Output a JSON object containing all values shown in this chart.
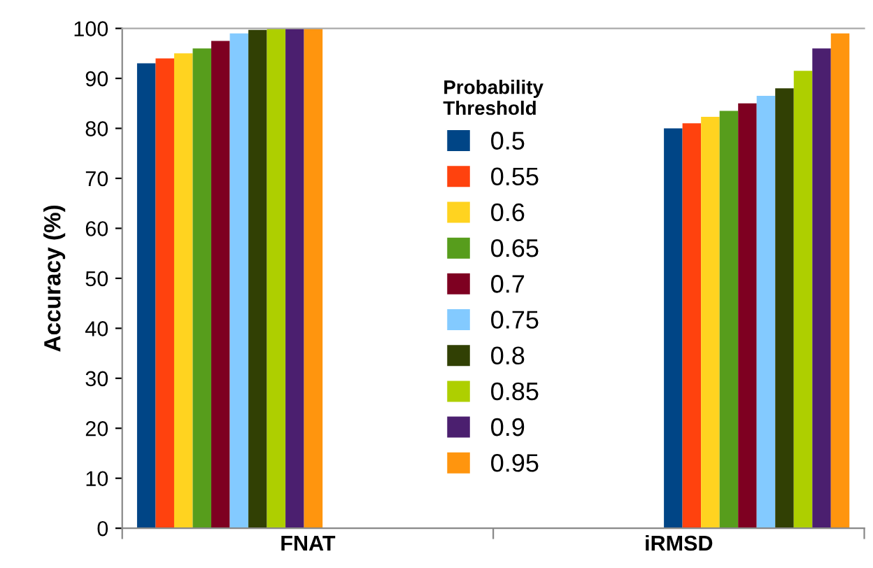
{
  "chart_data": {
    "type": "bar",
    "ylabel": "Accuracy (%)",
    "categories": [
      "FNAT",
      "iRMSD"
    ],
    "legend_title": "Probability\nThreshold",
    "legend": "center",
    "ylim": [
      0,
      100
    ],
    "yticks": [
      0,
      10,
      20,
      30,
      40,
      50,
      60,
      70,
      80,
      90,
      100
    ],
    "grid": false,
    "series": [
      {
        "name": "0.5",
        "color": "#004586",
        "values": [
          93,
          80
        ]
      },
      {
        "name": "0.55",
        "color": "#ff420e",
        "values": [
          94,
          81
        ]
      },
      {
        "name": "0.6",
        "color": "#ffd320",
        "values": [
          95,
          82.3
        ]
      },
      {
        "name": "0.65",
        "color": "#579d1c",
        "values": [
          96,
          83.5
        ]
      },
      {
        "name": "0.7",
        "color": "#7e0021",
        "values": [
          97.5,
          85
        ]
      },
      {
        "name": "0.75",
        "color": "#83caff",
        "values": [
          99,
          86.5
        ]
      },
      {
        "name": "0.8",
        "color": "#314004",
        "values": [
          99.7,
          88
        ]
      },
      {
        "name": "0.85",
        "color": "#aecf00",
        "values": [
          100,
          91.5
        ]
      },
      {
        "name": "0.9",
        "color": "#4b1f6f",
        "values": [
          100,
          96
        ]
      },
      {
        "name": "0.95",
        "color": "#ff950e",
        "values": [
          100,
          99
        ]
      }
    ]
  }
}
